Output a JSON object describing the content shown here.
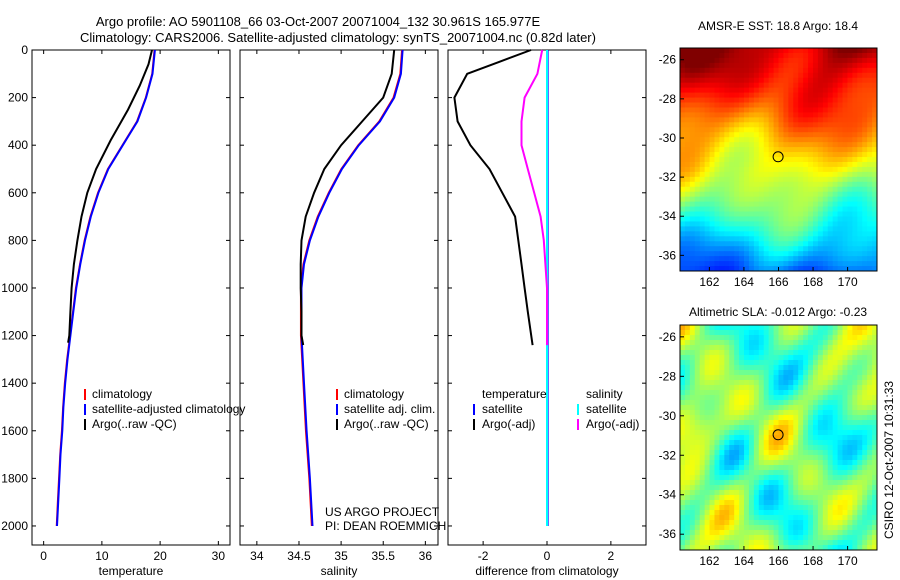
{
  "figure": {
    "title_line1": "Argo profile: AO 5901108_66 03-Oct-2007 20071004_132 30.961S 165.977E",
    "title_line2": "Climatology: CARS2006. Satellite-adjusted climatology: synTS_20071004.nc (0.82d later)",
    "project_line1": "US ARGO PROJECT",
    "project_line2": "PI: DEAN ROEMMICH",
    "credit": "CSIRO 12-Oct-2007 10:31:33"
  },
  "colors": {
    "climatology": "#ff0000",
    "satellite": "#0000ff",
    "argo": "#000000",
    "satellite_diff": "#00ffff",
    "argo_sal_diff": "#ff00ff"
  },
  "chart_data": [
    {
      "type": "line",
      "xlabel": "temperature",
      "ylabel": "",
      "xlim": [
        -2,
        32
      ],
      "ylim": [
        2080,
        0
      ],
      "xticks": [
        0,
        10,
        20,
        30
      ],
      "yticks": [
        0,
        200,
        400,
        600,
        800,
        1000,
        1200,
        1400,
        1600,
        1800,
        2000
      ],
      "legend": [
        "climatology",
        "satellite-adjusted climatology",
        "Argo(..raw -QC)"
      ],
      "series": [
        {
          "name": "climatology",
          "points": [
            [
              19.0,
              0
            ],
            [
              18.6,
              100
            ],
            [
              17.5,
              200
            ],
            [
              16.0,
              300
            ],
            [
              13.5,
              400
            ],
            [
              11.0,
              500
            ],
            [
              9.3,
              600
            ],
            [
              8.0,
              700
            ],
            [
              7.0,
              800
            ],
            [
              6.2,
              900
            ],
            [
              5.5,
              1000
            ],
            [
              5.0,
              1100
            ],
            [
              4.5,
              1200
            ],
            [
              4.0,
              1300
            ],
            [
              3.6,
              1400
            ],
            [
              3.3,
              1500
            ],
            [
              3.1,
              1600
            ],
            [
              2.8,
              1700
            ],
            [
              2.6,
              1800
            ],
            [
              2.4,
              1900
            ],
            [
              2.2,
              2000
            ]
          ]
        },
        {
          "name": "satellite-adjusted climatology",
          "points": [
            [
              19.1,
              0
            ],
            [
              18.7,
              100
            ],
            [
              17.6,
              200
            ],
            [
              16.1,
              300
            ],
            [
              13.6,
              400
            ],
            [
              11.1,
              500
            ],
            [
              9.4,
              600
            ],
            [
              8.1,
              700
            ],
            [
              7.1,
              800
            ],
            [
              6.3,
              900
            ],
            [
              5.6,
              1000
            ],
            [
              5.1,
              1100
            ],
            [
              4.6,
              1200
            ],
            [
              4.1,
              1300
            ],
            [
              3.7,
              1400
            ],
            [
              3.4,
              1500
            ],
            [
              3.2,
              1600
            ],
            [
              2.9,
              1700
            ],
            [
              2.7,
              1800
            ],
            [
              2.5,
              1900
            ],
            [
              2.3,
              2000
            ]
          ]
        },
        {
          "name": "Argo(..raw -QC)",
          "points": [
            [
              18.6,
              0
            ],
            [
              18.0,
              60
            ],
            [
              16.5,
              150
            ],
            [
              14.5,
              250
            ],
            [
              11.5,
              380
            ],
            [
              9.0,
              500
            ],
            [
              7.5,
              600
            ],
            [
              6.5,
              700
            ],
            [
              5.8,
              800
            ],
            [
              5.2,
              900
            ],
            [
              4.8,
              1000
            ],
            [
              4.6,
              1100
            ],
            [
              4.4,
              1200
            ],
            [
              4.2,
              1230
            ]
          ]
        }
      ]
    },
    {
      "type": "line",
      "xlabel": "salinity",
      "ylabel": "",
      "xlim": [
        33.8,
        36.15
      ],
      "ylim": [
        2080,
        0
      ],
      "xticks": [
        34,
        34.5,
        35,
        35.5,
        36
      ],
      "legend": [
        "climatology",
        "satellite adj. clim.",
        "Argo(..raw -QC)"
      ],
      "series": [
        {
          "name": "climatology",
          "points": [
            [
              35.72,
              0
            ],
            [
              35.7,
              100
            ],
            [
              35.62,
              200
            ],
            [
              35.45,
              300
            ],
            [
              35.2,
              400
            ],
            [
              35.0,
              500
            ],
            [
              34.85,
              600
            ],
            [
              34.72,
              700
            ],
            [
              34.62,
              800
            ],
            [
              34.55,
              900
            ],
            [
              34.52,
              1000
            ],
            [
              34.52,
              1200
            ],
            [
              34.55,
              1400
            ],
            [
              34.58,
              1600
            ],
            [
              34.62,
              1800
            ],
            [
              34.65,
              2000
            ]
          ]
        },
        {
          "name": "satellite adj. clim.",
          "points": [
            [
              35.73,
              0
            ],
            [
              35.71,
              100
            ],
            [
              35.63,
              200
            ],
            [
              35.46,
              300
            ],
            [
              35.21,
              400
            ],
            [
              35.01,
              500
            ],
            [
              34.86,
              600
            ],
            [
              34.73,
              700
            ],
            [
              34.63,
              800
            ],
            [
              34.56,
              900
            ],
            [
              34.53,
              1000
            ],
            [
              34.53,
              1200
            ],
            [
              34.56,
              1400
            ],
            [
              34.59,
              1600
            ],
            [
              34.63,
              1800
            ],
            [
              34.66,
              2000
            ]
          ]
        },
        {
          "name": "Argo(..raw -QC)",
          "points": [
            [
              35.63,
              0
            ],
            [
              35.6,
              100
            ],
            [
              35.5,
              200
            ],
            [
              35.25,
              300
            ],
            [
              35.0,
              400
            ],
            [
              34.8,
              500
            ],
            [
              34.68,
              600
            ],
            [
              34.58,
              700
            ],
            [
              34.53,
              800
            ],
            [
              34.52,
              900
            ],
            [
              34.52,
              1000
            ],
            [
              34.53,
              1100
            ],
            [
              34.53,
              1200
            ],
            [
              34.55,
              1240
            ]
          ]
        }
      ]
    },
    {
      "type": "line",
      "xlabel": "difference from climatology",
      "ylabel": "",
      "xlim": [
        -3.1,
        3.1
      ],
      "ylim": [
        2080,
        0
      ],
      "xticks": [
        -2,
        0,
        2
      ],
      "legend": [
        "temperature",
        "satellite",
        "Argo(-adj)",
        "salinity",
        "satellite",
        "Argo(-adj)"
      ],
      "series": [
        {
          "name": "temperature satellite",
          "points": [
            [
              0.02,
              0
            ],
            [
              0.02,
              500
            ],
            [
              0.02,
              1000
            ],
            [
              0.02,
              1500
            ],
            [
              0.02,
              2000
            ]
          ]
        },
        {
          "name": "temperature Argo(-adj)",
          "points": [
            [
              -0.5,
              0
            ],
            [
              -1.5,
              50
            ],
            [
              -2.5,
              100
            ],
            [
              -2.9,
              200
            ],
            [
              -2.8,
              300
            ],
            [
              -2.4,
              400
            ],
            [
              -1.8,
              500
            ],
            [
              -1.4,
              600
            ],
            [
              -1.0,
              700
            ],
            [
              -0.9,
              800
            ],
            [
              -0.8,
              900
            ],
            [
              -0.7,
              1000
            ],
            [
              -0.6,
              1100
            ],
            [
              -0.45,
              1240
            ]
          ]
        },
        {
          "name": "salinity satellite",
          "points": [
            [
              0.0,
              0
            ],
            [
              0.0,
              500
            ],
            [
              0.0,
              1000
            ],
            [
              0.0,
              1500
            ],
            [
              0.0,
              2000
            ]
          ]
        },
        {
          "name": "salinity Argo(-adj)",
          "points": [
            [
              -0.15,
              0
            ],
            [
              -0.3,
              100
            ],
            [
              -0.7,
              200
            ],
            [
              -0.8,
              300
            ],
            [
              -0.8,
              400
            ],
            [
              -0.6,
              500
            ],
            [
              -0.4,
              600
            ],
            [
              -0.2,
              700
            ],
            [
              -0.1,
              800
            ],
            [
              -0.05,
              900
            ],
            [
              0.0,
              1000
            ],
            [
              0.0,
              1240
            ]
          ]
        }
      ]
    },
    {
      "type": "heatmap",
      "title": "AMSR-E SST: 18.8 Argo: 18.4",
      "xlim": [
        160.3,
        171.7
      ],
      "ylim": [
        -36.8,
        -25.4
      ],
      "xticks": [
        162,
        164,
        166,
        168,
        170
      ],
      "yticks": [
        -26,
        -28,
        -30,
        -32,
        -34,
        -36
      ],
      "argo_location": [
        165.977,
        -30.961
      ]
    },
    {
      "type": "heatmap",
      "title": "Altimetric SLA: -0.012 Argo: -0.23",
      "xlim": [
        160.3,
        171.7
      ],
      "ylim": [
        -36.8,
        -25.4
      ],
      "xticks": [
        162,
        164,
        166,
        168,
        170
      ],
      "yticks": [
        -26,
        -28,
        -30,
        -32,
        -34,
        -36
      ],
      "argo_location": [
        165.977,
        -30.961
      ]
    }
  ]
}
